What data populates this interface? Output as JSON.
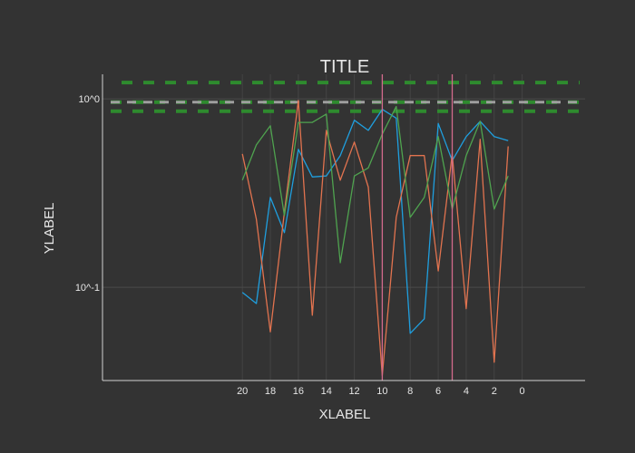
{
  "chart_data": {
    "type": "line",
    "title": "TITLE",
    "xlabel": "XLABEL",
    "ylabel": "YLABEL",
    "x_axis": {
      "reversed": true,
      "xlim": [
        -4.5,
        30
      ],
      "ticks": [
        20,
        18,
        16,
        14,
        12,
        10,
        8,
        6,
        4,
        2,
        0
      ],
      "tick_labels": [
        "20",
        "18",
        "16",
        "14",
        "12",
        "10",
        "8",
        "6",
        "4",
        "2",
        "0"
      ]
    },
    "y_axis": {
      "scale": "log",
      "ylim": [
        0.032,
        1.35
      ],
      "ticks": [
        0.1,
        1
      ],
      "tick_labels": [
        "10^-1",
        "10^0"
      ]
    },
    "grid": true,
    "legend": "none",
    "x": [
      20,
      19,
      18,
      17,
      16,
      15,
      14,
      13,
      12,
      11,
      10,
      9,
      8,
      7,
      6,
      5,
      4,
      3,
      2,
      1
    ],
    "series": [
      {
        "color": "#1f9fdf",
        "values": [
          0.094,
          0.082,
          0.3,
          0.195,
          0.54,
          0.385,
          0.39,
          0.5,
          0.77,
          0.68,
          0.88,
          0.79,
          0.057,
          0.068,
          0.74,
          0.47,
          0.63,
          0.76,
          0.63,
          0.6
        ]
      },
      {
        "color": "#e2734f",
        "values": [
          0.51,
          0.23,
          0.058,
          0.25,
          0.98,
          0.071,
          0.68,
          0.37,
          0.59,
          0.34,
          0.034,
          0.235,
          0.5,
          0.5,
          0.122,
          0.51,
          0.077,
          0.61,
          0.04,
          0.56
        ]
      },
      {
        "color": "#4fa34f",
        "values": [
          0.37,
          0.57,
          0.72,
          0.24,
          0.75,
          0.75,
          0.83,
          0.135,
          0.39,
          0.43,
          0.65,
          0.91,
          0.235,
          0.3,
          0.63,
          0.26,
          0.5,
          0.76,
          0.26,
          0.39
        ]
      }
    ],
    "hlines": [
      {
        "y": 1.22,
        "color": "#2e8b2e",
        "style": "dashed"
      },
      {
        "y": 0.96,
        "color": "#2e8b2e",
        "style": "dashed"
      },
      {
        "y": 0.96,
        "color": "#9e9e9e",
        "style": "dashed"
      },
      {
        "y": 0.86,
        "color": "#2e8b2e",
        "style": "dashed"
      }
    ],
    "vlines": [
      {
        "x": 10,
        "color": "#d26a8c"
      },
      {
        "x": 5,
        "color": "#d26a8c"
      }
    ]
  }
}
